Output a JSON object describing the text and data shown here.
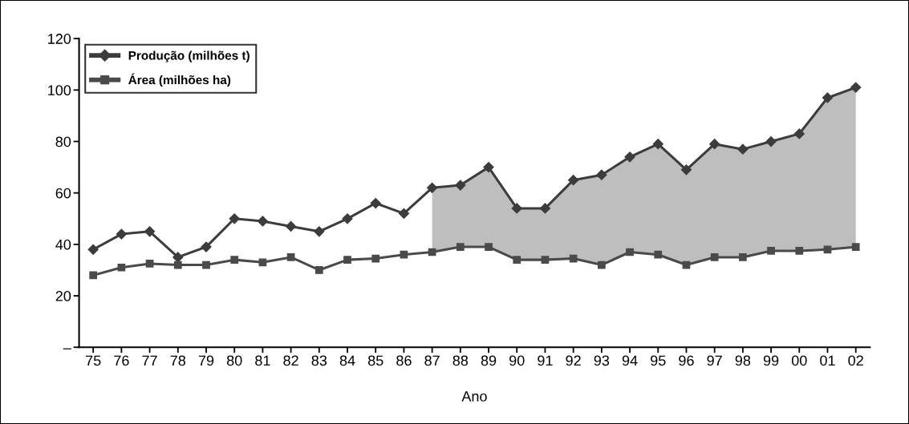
{
  "chart_data": {
    "type": "line",
    "xlabel": "Ano",
    "categories": [
      "75",
      "76",
      "77",
      "78",
      "79",
      "80",
      "81",
      "82",
      "83",
      "84",
      "85",
      "86",
      "87",
      "88",
      "89",
      "90",
      "91",
      "92",
      "93",
      "94",
      "95",
      "96",
      "97",
      "98",
      "99",
      "00",
      "01",
      "02"
    ],
    "series": [
      {
        "name": "Produção (milhões t)",
        "color": "#3c3c3c",
        "marker": "diamond",
        "values": [
          38,
          44,
          45,
          35,
          39,
          50,
          49,
          47,
          45,
          50,
          56,
          52,
          62,
          63,
          70,
          54,
          54,
          65,
          67,
          74,
          79,
          69,
          79,
          77,
          80,
          83,
          97,
          101
        ],
        "lower": [
          null,
          null,
          null,
          null,
          null,
          null,
          null,
          null,
          null,
          null,
          null,
          null,
          37,
          39,
          39,
          34,
          34,
          34.5,
          32,
          37,
          36,
          32,
          35,
          35,
          37.5,
          37.5,
          38,
          39
        ],
        "upper": [
          null,
          null,
          null,
          null,
          null,
          null,
          null,
          null,
          null,
          null,
          null,
          null,
          62,
          63,
          70,
          54,
          54,
          65,
          67,
          74,
          79,
          69,
          79,
          77,
          80,
          83,
          97,
          101
        ]
      },
      {
        "name": "Área (milhões ha)",
        "color": "#4a4a4a",
        "marker": "square",
        "values": [
          28,
          31,
          32.5,
          32,
          32,
          34,
          33,
          35,
          30,
          34,
          34.5,
          36,
          37,
          39,
          39,
          34,
          34,
          34.5,
          32,
          37,
          36,
          32,
          35,
          35,
          37.5,
          37.5,
          38,
          39
        ]
      }
    ],
    "grid": false,
    "ylim": [
      0,
      120
    ],
    "yticks": [
      {
        "value": 0,
        "label": "–"
      },
      20,
      40,
      60,
      80,
      100,
      120
    ],
    "legend": "top left"
  }
}
